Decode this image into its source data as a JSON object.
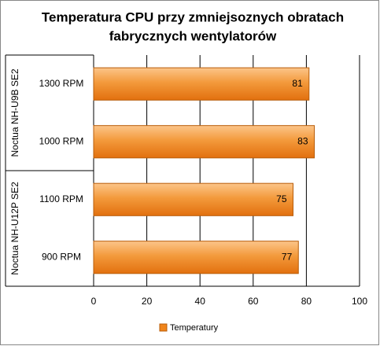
{
  "chart_data": {
    "type": "bar",
    "orientation": "horizontal",
    "title_lines": [
      "Temperatura CPU przy zmniejsoznych obratach",
      "fabrycznych wentylatorów"
    ],
    "group_labels": [
      "Noctua NH-U9B SE2",
      "Noctua NH-U12P SE2"
    ],
    "categories": [
      "1300 RPM",
      "1000 RPM",
      "1100 RPM",
      "900 RPM"
    ],
    "series": [
      {
        "name": "Temperatury",
        "color": "#f0841a",
        "values": [
          81,
          83,
          75,
          77
        ]
      }
    ],
    "xlim": [
      0,
      100
    ],
    "xticks": [
      0,
      20,
      40,
      60,
      80,
      100
    ],
    "grid": true,
    "legend": "bottom"
  }
}
